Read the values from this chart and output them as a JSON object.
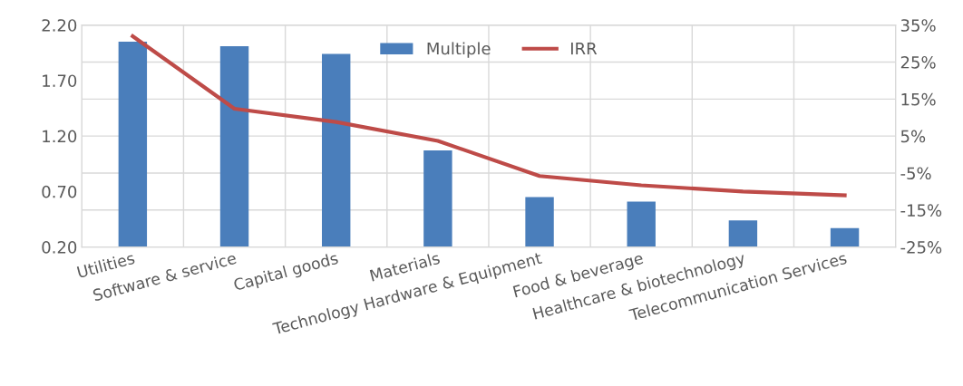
{
  "chart_data": {
    "type": "bar",
    "categories": [
      "Utilities",
      "Software & service",
      "Capital goods",
      "Materials",
      "Technology Hardware & Equipment",
      "Food & beverage",
      "Healthcare & biotechnology",
      "Telecommunication Services"
    ],
    "series": [
      {
        "name": "Multiple",
        "color": "#4a7ebb",
        "values": [
          2.05,
          2.01,
          1.94,
          1.07,
          0.65,
          0.61,
          0.44,
          0.37
        ]
      },
      {
        "name": "IRR",
        "type": "line",
        "axis": "y2",
        "color": "#be4b48",
        "values": [
          32,
          12.4,
          8.8,
          3.7,
          -5.8,
          -8.3,
          -10,
          -11
        ]
      }
    ],
    "ylim": [
      0.2,
      2.2
    ],
    "yticks": [
      {
        "value": 0.2,
        "label": "0.20"
      },
      {
        "value": 0.7,
        "label": "0.70"
      },
      {
        "value": 1.2,
        "label": "1.20"
      },
      {
        "value": 1.7,
        "label": "1.70"
      },
      {
        "value": 2.2,
        "label": "2.20"
      }
    ],
    "y2lim": [
      -25,
      35
    ],
    "y2ticks": [
      {
        "value": -25,
        "label": "-25%"
      },
      {
        "value": -15,
        "label": "-15%"
      },
      {
        "value": -5,
        "label": "-5%"
      },
      {
        "value": 5,
        "label": "5%"
      },
      {
        "value": 15,
        "label": "15%"
      },
      {
        "value": 25,
        "label": "25%"
      },
      {
        "value": 35,
        "label": "35%"
      }
    ],
    "grid": true,
    "legend": "top",
    "marker": "none",
    "line_style": "solid"
  }
}
